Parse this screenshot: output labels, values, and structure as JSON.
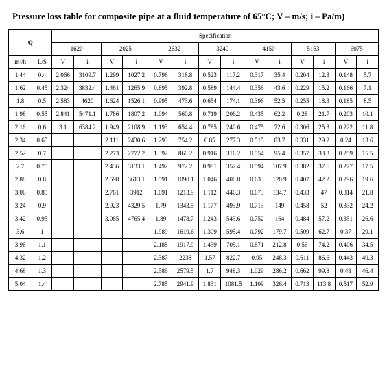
{
  "title": "Pressure loss table for composite pipe at a fluid temperature of 65°C; V – m/s; i – Pa/m)",
  "header": {
    "q": "Q",
    "spec": "Specification",
    "subs": [
      "1620",
      "2025",
      "2632",
      "3240",
      "4150",
      "5163",
      "6075"
    ],
    "m3h": "m³/h",
    "ls": "L/S",
    "v": "V",
    "i": "i"
  },
  "rows": [
    {
      "m": "1.44",
      "l": "0.4",
      "c": [
        "2.066",
        "3109.7",
        "1.299",
        "1027.2",
        "0.796",
        "318.8",
        "0.523",
        "117.2",
        "0.317",
        "35.4",
        "0.204",
        "12.3",
        "0.148",
        "5.7"
      ]
    },
    {
      "m": "1.62",
      "l": "0.45",
      "c": [
        "2.324",
        "3832.4",
        "1.461",
        "1265.9",
        "0.895",
        "392.8",
        "0.589",
        "144.4",
        "0.356",
        "43.6",
        "0.229",
        "15.2",
        "0.166",
        "7.1"
      ]
    },
    {
      "m": "1.8",
      "l": "0.5",
      "c": [
        "2.583",
        "4620",
        "1.624",
        "1526.1",
        "0.995",
        "473.6",
        "0.654",
        "174.1",
        "0.396",
        "52.5",
        "0.255",
        "18.3",
        "0.185",
        "8.5"
      ]
    },
    {
      "m": "1.98",
      "l": "0.55",
      "c": [
        "2.841",
        "5471.1",
        "1.786",
        "1807.2",
        "1.094",
        "560.8",
        "0.719",
        "206.2",
        "0.435",
        "62.2",
        "0.28",
        "21.7",
        "0.203",
        "10.1"
      ]
    },
    {
      "m": "2.16",
      "l": "0.6",
      "c": [
        "3.1",
        "6384.2",
        "1.949",
        "2108.9",
        "1.193",
        "654.4",
        "0.785",
        "240.6",
        "0.475",
        "72.6",
        "0.306",
        "25.3",
        "0.222",
        "11.8"
      ]
    },
    {
      "m": "2.34",
      "l": "0.65",
      "c": [
        "",
        "",
        "2.111",
        "2430.6",
        "1.293",
        "754.2",
        "0.85",
        "277.3",
        "0.515",
        "83.7",
        "0.331",
        "29.2",
        "0.24",
        "13.6"
      ]
    },
    {
      "m": "2.52",
      "l": "0.7",
      "c": [
        "",
        "",
        "2.273",
        "2772.2",
        "1.392",
        "860.2",
        "0.916",
        "316.2",
        "0.554",
        "95.4",
        "0.357",
        "33.3",
        "0.259",
        "15.5"
      ]
    },
    {
      "m": "2.7",
      "l": "0.75",
      "c": [
        "",
        "",
        "2.436",
        "3133.1",
        "1.492",
        "972.2",
        "0.981",
        "357.4",
        "0.594",
        "107.9",
        "0.382",
        "37.6",
        "0.277",
        "17.5"
      ]
    },
    {
      "m": "2.88",
      "l": "0.8",
      "c": [
        "",
        "",
        "2.598",
        "3613.1",
        "1.591",
        "1090.1",
        "1.046",
        "400.8",
        "0.633",
        "120.9",
        "0.407",
        "42.2",
        "0.296",
        "19.6"
      ]
    },
    {
      "m": "3.06",
      "l": "0.85",
      "c": [
        "",
        "",
        "2.761",
        "3912",
        "1.691",
        "1213.9",
        "1.112",
        "446.3",
        "0.673",
        "134.7",
        "0.433",
        "47",
        "0.314",
        "21.8"
      ]
    },
    {
      "m": "3.24",
      "l": "0.9",
      "c": [
        "",
        "",
        "2.923",
        "4329.5",
        "1.79",
        "1343.5",
        "1.177",
        "493.9",
        "0.713",
        "149",
        "0.458",
        "52",
        "0.332",
        "24.2"
      ]
    },
    {
      "m": "3.42",
      "l": "0.95",
      "c": [
        "",
        "",
        "3.085",
        "4765.4",
        "1.89",
        "1478.7",
        "1.243",
        "543.6",
        "0.752",
        "164",
        "0.484",
        "57.2",
        "0.351",
        "26.6"
      ]
    },
    {
      "m": "3.6",
      "l": "1",
      "c": [
        "",
        "",
        "",
        "",
        "1.989",
        "1619.6",
        "1.309",
        "595.4",
        "0.792",
        "179.7",
        "0.509",
        "62.7",
        "0.37",
        "29.1"
      ]
    },
    {
      "m": "3.96",
      "l": "1.1",
      "c": [
        "",
        "",
        "",
        "",
        "2.188",
        "1917.9",
        "1.439",
        "705.1",
        "0.871",
        "212.8",
        "0.56",
        "74.2",
        "0.406",
        "34.5"
      ]
    },
    {
      "m": "4.32",
      "l": "1.2",
      "c": [
        "",
        "",
        "",
        "",
        "2.387",
        "2238",
        "1.57",
        "822.7",
        "0.95",
        "248.3",
        "0.611",
        "86.6",
        "0.443",
        "40.3"
      ]
    },
    {
      "m": "4.68",
      "l": "1.3",
      "c": [
        "",
        "",
        "",
        "",
        "2.586",
        "2579.5",
        "1.7",
        "948.3",
        "1.029",
        "286.2",
        "0.662",
        "99.8",
        "0.48",
        "46.4"
      ]
    },
    {
      "m": "5.04",
      "l": "1.4",
      "c": [
        "",
        "",
        "",
        "",
        "2.785",
        "2941.9",
        "1.831",
        "1081.5",
        "1.109",
        "326.4",
        "0.713",
        "113.8",
        "0.517",
        "52.9"
      ]
    }
  ]
}
